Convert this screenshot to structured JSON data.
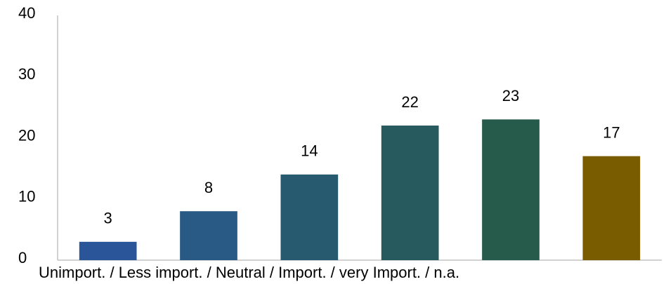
{
  "chart_data": {
    "type": "bar",
    "xlabel": "Unimport. / Less import. / Neutral / Import. / very Import. / n.a.",
    "categories": [
      null,
      null,
      null,
      null,
      null,
      null
    ],
    "values": [
      3,
      8,
      14,
      22,
      23,
      17
    ],
    "colors": [
      "#2a5699",
      "#285a85",
      "#275a6e",
      "#275a5e",
      "#265a4a",
      "#7a5c00"
    ],
    "ylim": [
      0,
      40
    ],
    "yticks": [
      0,
      10,
      20,
      30,
      40
    ],
    "grid": false
  }
}
